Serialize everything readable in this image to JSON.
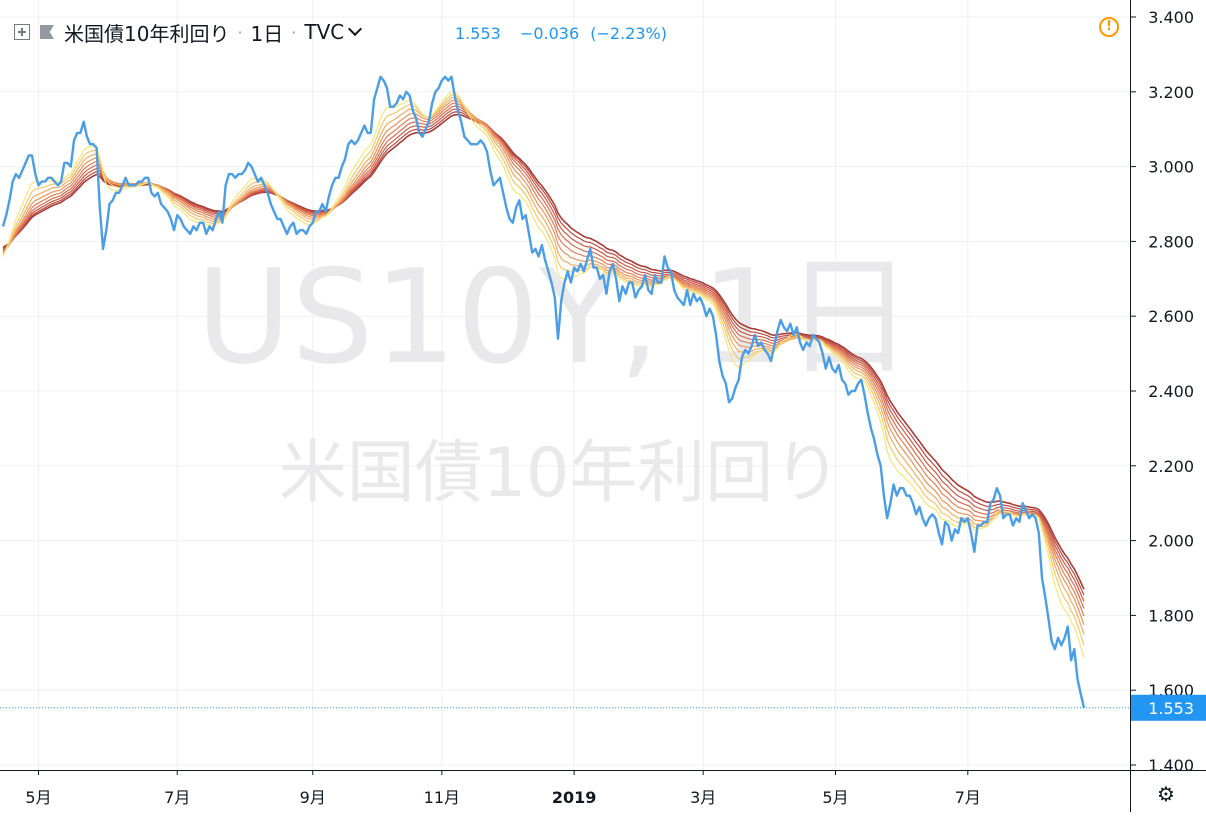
{
  "header": {
    "symbol_name": "米国債10年利回り",
    "interval": "1日",
    "exchange": "TVC",
    "last": "1.553",
    "change": "−0.036",
    "change_pct": "(−2.23%)"
  },
  "watermark": {
    "line1": "US10Y, 1日",
    "line2": "米国債10年利回り"
  },
  "price_label": "1.553",
  "colors": {
    "price_line": "#4a9ee6",
    "accent": "#2196f3",
    "warning": "#ff9800",
    "ribbon": [
      "#f7e57a",
      "#f5c76c",
      "#f1ad63",
      "#ec945b",
      "#e47f55",
      "#da6c4f",
      "#cc5a48",
      "#bb4a40",
      "#a93b36"
    ]
  },
  "icons": {
    "add": "plus-square-icon",
    "flag": "flag-icon",
    "warning": "warning-icon",
    "settings": "gear-icon",
    "dropdown": "chevron-down-icon"
  },
  "chart_data": {
    "type": "line",
    "x_unit": "trading day index from 2018-04-18 to 2019-08-29",
    "x_tick_labels": [
      {
        "day": 11,
        "label": "5月"
      },
      {
        "day": 54,
        "label": "7月"
      },
      {
        "day": 96,
        "label": "9月"
      },
      {
        "day": 136,
        "label": "11月"
      },
      {
        "day": 177,
        "label": "2019"
      },
      {
        "day": 217,
        "label": "3月"
      },
      {
        "day": 258,
        "label": "5月"
      },
      {
        "day": 299,
        "label": "7月"
      }
    ],
    "y_ticks": [
      1.4,
      1.6,
      1.8,
      2.0,
      2.2,
      2.4,
      2.6,
      2.8,
      3.0,
      3.2,
      3.4
    ],
    "ylim": [
      1.37,
      3.44
    ],
    "xlim": [
      0,
      345
    ],
    "last_value": 1.553,
    "series": [
      {
        "name": "US10Y",
        "values": [
          2.84,
          2.87,
          2.91,
          2.96,
          2.98,
          2.97,
          2.99,
          3.01,
          3.03,
          3.03,
          2.98,
          2.95,
          2.96,
          2.96,
          2.97,
          2.97,
          2.96,
          2.95,
          2.96,
          3.01,
          3.01,
          3.0,
          3.07,
          3.09,
          3.09,
          3.12,
          3.08,
          3.06,
          3.06,
          3.05,
          2.89,
          2.78,
          2.83,
          2.9,
          2.91,
          2.93,
          2.93,
          2.95,
          2.97,
          2.95,
          2.95,
          2.95,
          2.96,
          2.96,
          2.97,
          2.97,
          2.93,
          2.92,
          2.93,
          2.9,
          2.89,
          2.88,
          2.86,
          2.83,
          2.87,
          2.86,
          2.84,
          2.83,
          2.82,
          2.84,
          2.83,
          2.85,
          2.85,
          2.82,
          2.84,
          2.83,
          2.86,
          2.88,
          2.85,
          2.95,
          2.98,
          2.98,
          2.97,
          2.98,
          2.98,
          2.99,
          3.01,
          3.0,
          2.98,
          2.96,
          2.97,
          2.95,
          2.93,
          2.9,
          2.88,
          2.86,
          2.86,
          2.84,
          2.82,
          2.84,
          2.85,
          2.82,
          2.83,
          2.83,
          2.82,
          2.84,
          2.85,
          2.88,
          2.88,
          2.9,
          2.88,
          2.92,
          2.95,
          2.97,
          2.97,
          3.0,
          3.02,
          3.06,
          3.07,
          3.06,
          3.07,
          3.09,
          3.11,
          3.09,
          3.09,
          3.18,
          3.21,
          3.24,
          3.23,
          3.21,
          3.16,
          3.16,
          3.17,
          3.19,
          3.18,
          3.2,
          3.19,
          3.15,
          3.13,
          3.09,
          3.08,
          3.1,
          3.12,
          3.17,
          3.2,
          3.21,
          3.23,
          3.24,
          3.23,
          3.24,
          3.19,
          3.15,
          3.12,
          3.08,
          3.07,
          3.06,
          3.06,
          3.06,
          3.07,
          3.06,
          3.04,
          2.99,
          2.95,
          2.96,
          2.97,
          2.93,
          2.89,
          2.86,
          2.85,
          2.89,
          2.91,
          2.86,
          2.87,
          2.82,
          2.77,
          2.78,
          2.76,
          2.79,
          2.75,
          2.72,
          2.69,
          2.65,
          2.54,
          2.64,
          2.69,
          2.72,
          2.69,
          2.73,
          2.72,
          2.74,
          2.72,
          2.75,
          2.78,
          2.73,
          2.73,
          2.7,
          2.71,
          2.66,
          2.72,
          2.74,
          2.7,
          2.64,
          2.68,
          2.66,
          2.69,
          2.69,
          2.65,
          2.67,
          2.68,
          2.71,
          2.67,
          2.66,
          2.71,
          2.69,
          2.69,
          2.76,
          2.73,
          2.72,
          2.67,
          2.65,
          2.64,
          2.63,
          2.67,
          2.63,
          2.66,
          2.64,
          2.65,
          2.63,
          2.6,
          2.62,
          2.6,
          2.55,
          2.48,
          2.44,
          2.42,
          2.37,
          2.38,
          2.41,
          2.43,
          2.49,
          2.51,
          2.5,
          2.52,
          2.55,
          2.52,
          2.53,
          2.51,
          2.5,
          2.48,
          2.52,
          2.56,
          2.59,
          2.57,
          2.56,
          2.58,
          2.55,
          2.57,
          2.53,
          2.51,
          2.53,
          2.52,
          2.55,
          2.54,
          2.53,
          2.5,
          2.46,
          2.49,
          2.46,
          2.45,
          2.47,
          2.43,
          2.42,
          2.39,
          2.4,
          2.4,
          2.42,
          2.43,
          2.39,
          2.34,
          2.3,
          2.27,
          2.23,
          2.2,
          2.12,
          2.06,
          2.1,
          2.15,
          2.12,
          2.14,
          2.14,
          2.12,
          2.12,
          2.1,
          2.07,
          2.09,
          2.06,
          2.04,
          2.06,
          2.07,
          2.06,
          2.02,
          1.99,
          2.05,
          2.04,
          2.0,
          2.03,
          2.02,
          2.06,
          2.05,
          2.06,
          2.02,
          1.97,
          2.04,
          2.04,
          2.05,
          2.05,
          2.1,
          2.11,
          2.14,
          2.12,
          2.06,
          2.07,
          2.07,
          2.04,
          2.06,
          2.05,
          2.1,
          2.08,
          2.06,
          2.07,
          2.06,
          2.02,
          1.9,
          1.85,
          1.79,
          1.73,
          1.71,
          1.74,
          1.72,
          1.74,
          1.77,
          1.68,
          1.71,
          1.63,
          1.59,
          1.553
        ]
      }
    ]
  }
}
